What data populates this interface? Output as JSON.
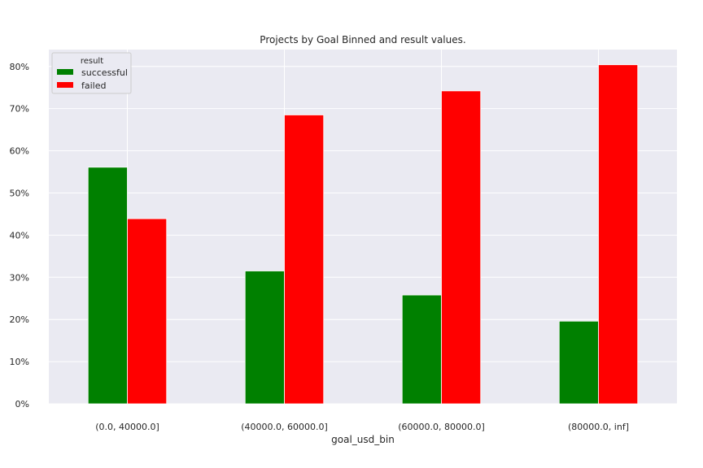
{
  "chart_data": {
    "type": "bar",
    "title": "Projects by Goal Binned and result values.",
    "xlabel": "goal_usd_bin",
    "ylabel": "",
    "categories": [
      "(0.0, 40000.0]",
      "(40000.0, 60000.0]",
      "(60000.0, 80000.0]",
      "(80000.0, inf]"
    ],
    "series": [
      {
        "name": "successful",
        "color": "#008000",
        "values": [
          56.1,
          31.5,
          25.8,
          19.6
        ]
      },
      {
        "name": "failed",
        "color": "#ff0000",
        "values": [
          43.9,
          68.5,
          74.2,
          80.4
        ]
      }
    ],
    "ylim": [
      0,
      84
    ],
    "yticks": [
      0,
      10,
      20,
      30,
      40,
      50,
      60,
      70,
      80
    ],
    "ytick_labels": [
      "0%",
      "10%",
      "20%",
      "30%",
      "40%",
      "50%",
      "60%",
      "70%",
      "80%"
    ],
    "legend": {
      "title": "result",
      "placement": "top-left"
    },
    "grid": true,
    "background": "#eaeaf2"
  }
}
